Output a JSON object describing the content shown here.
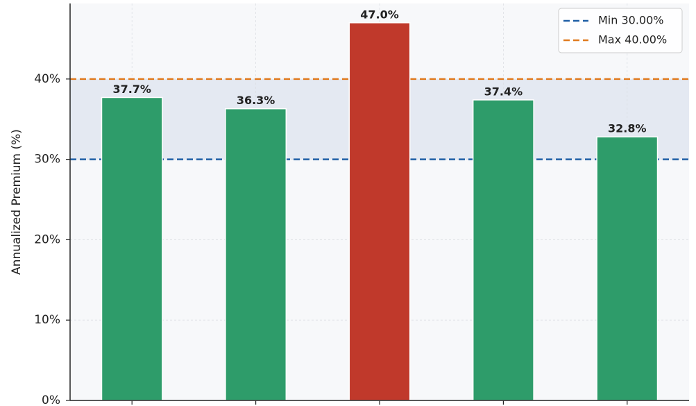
{
  "chart_data": {
    "type": "bar",
    "ylabel": "Annualized Premium (%)",
    "categories": [
      null,
      null,
      null,
      null,
      null
    ],
    "values": [
      37.7,
      36.3,
      47.0,
      37.4,
      32.8
    ],
    "value_labels": [
      "37.7%",
      "36.3%",
      "47.0%",
      "37.4%",
      "32.8%"
    ],
    "colors": [
      "#2e9c6a",
      "#2e9c6a",
      "#c0392b",
      "#2e9c6a",
      "#2e9c6a"
    ],
    "ylim": [
      0,
      49.4
    ],
    "yticks": [
      {
        "value": 0,
        "label": "0%"
      },
      {
        "value": 10,
        "label": "10%"
      },
      {
        "value": 20,
        "label": "20%"
      },
      {
        "value": 30,
        "label": "30%"
      },
      {
        "value": 40,
        "label": "40%"
      }
    ],
    "grid": true,
    "reference_lines": [
      {
        "name": "Min 30.00%",
        "value": 30,
        "color": "#1f5fa6"
      },
      {
        "name": "Max 40.00%",
        "value": 40,
        "color": "#e07b20"
      }
    ],
    "band_color": "#e4e9f2",
    "legend": "upper right"
  }
}
